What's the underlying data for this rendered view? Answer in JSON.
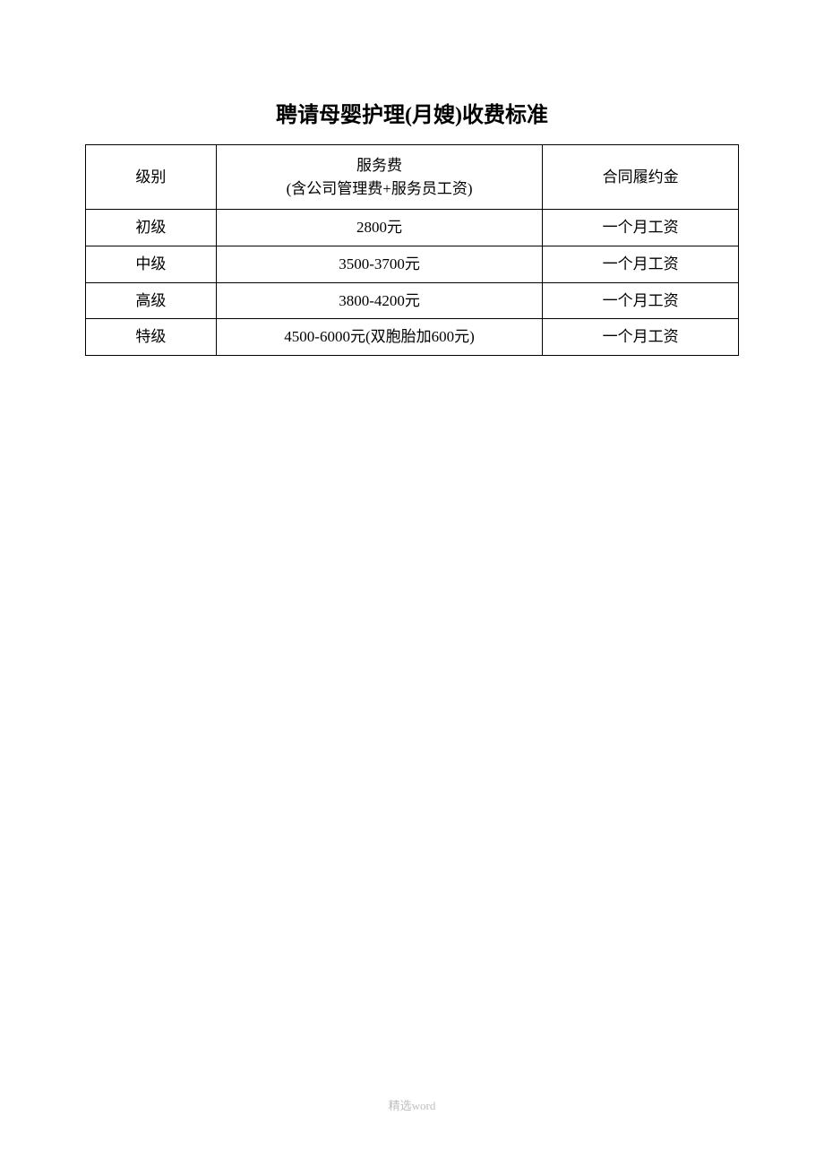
{
  "title": "聘请母婴护理(月嫂)收费标准",
  "table": {
    "columns": [
      {
        "label": "级别",
        "width": "20%"
      },
      {
        "label_line1": "服务费",
        "label_line2": "(含公司管理费+服务员工资)",
        "width": "50%"
      },
      {
        "label": "合同履约金",
        "width": "30%"
      }
    ],
    "rows": [
      {
        "level": "初级",
        "fee": "2800元",
        "deposit": "一个月工资"
      },
      {
        "level": "中级",
        "fee": "3500-3700元",
        "deposit": "一个月工资"
      },
      {
        "level": "高级",
        "fee": "3800-4200元",
        "deposit": "一个月工资"
      },
      {
        "level": "特级",
        "fee": "4500-6000元(双胞胎加600元)",
        "deposit": "一个月工资"
      }
    ],
    "border_color": "#000000",
    "text_color": "#000000",
    "header_fontsize": 17,
    "body_fontsize": 17
  },
  "footer": "精选word",
  "background_color": "#ffffff"
}
